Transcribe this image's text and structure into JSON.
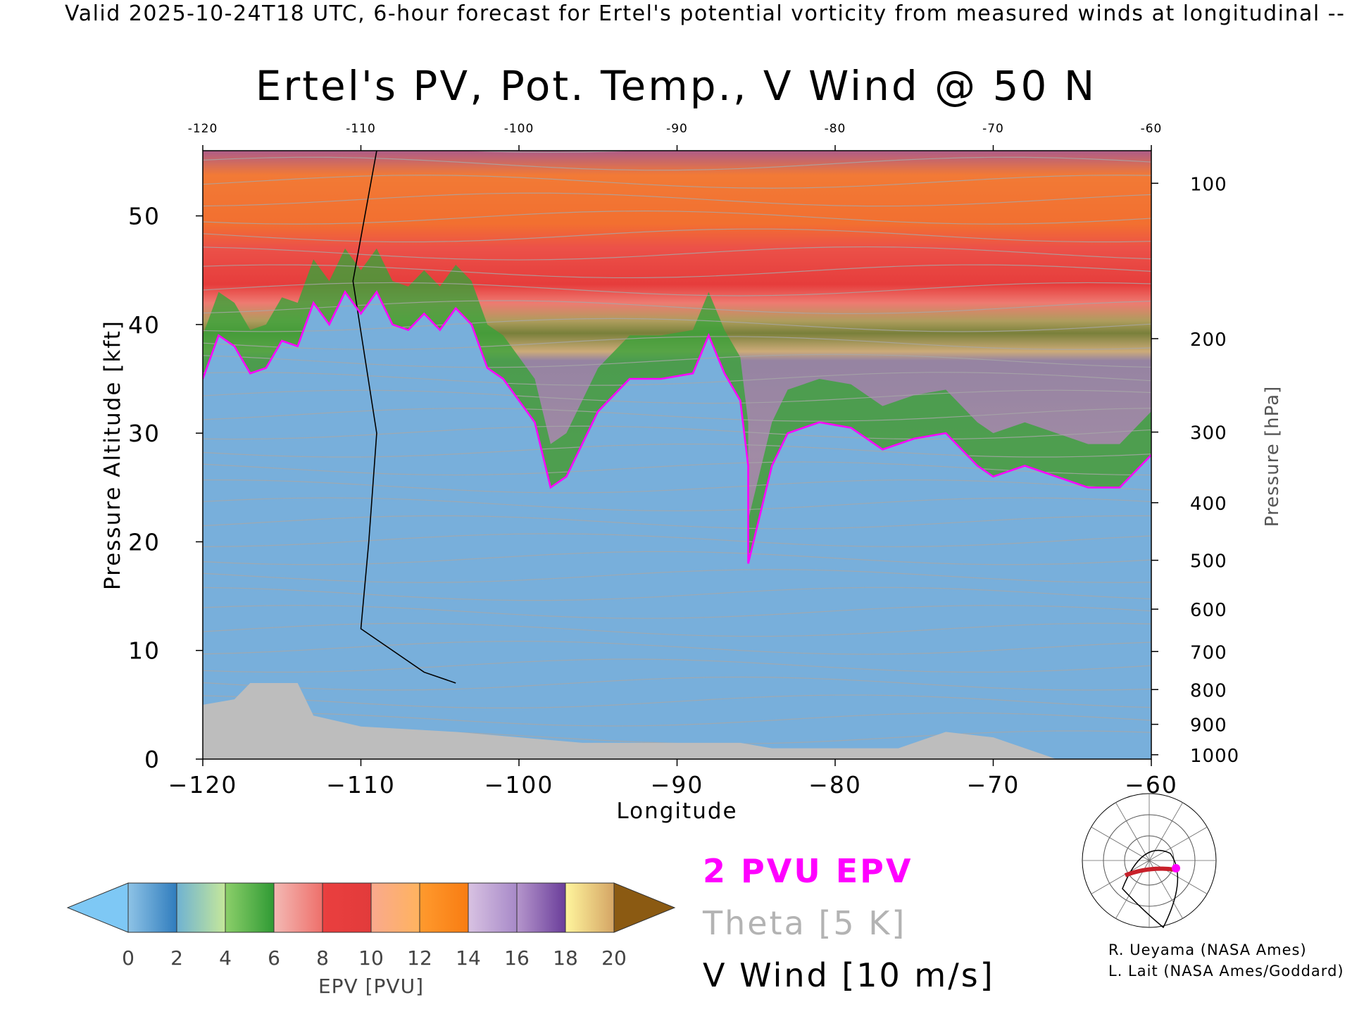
{
  "header": {
    "valid_line": "Valid 2025-10-24T18 UTC, 6-hour forecast for Ertel's potential vorticity from measured winds at longitudinal -- GEO"
  },
  "chart_data": {
    "type": "heatmap",
    "title": "Ertel's PV, Pot. Temp., V Wind @ 50 N",
    "xlabel": "Longitude",
    "ylabel": "Pressure Altitude [kft]",
    "y2label": "Pressure [hPa]",
    "xlim": [
      -120,
      -60
    ],
    "ylim": [
      0,
      56
    ],
    "x_ticks": [
      -120,
      -110,
      -100,
      -90,
      -80,
      -70,
      -60
    ],
    "x_tick_labels": [
      "−120",
      "−110",
      "−100",
      "−90",
      "−80",
      "−70",
      "−60"
    ],
    "top_tick_labels": [
      "-120",
      "-110",
      "-100",
      "-90",
      "-80",
      "-70",
      "-60"
    ],
    "y_ticks": [
      0,
      10,
      20,
      30,
      40,
      50
    ],
    "y_tick_labels": [
      "0",
      "10",
      "20",
      "30",
      "40",
      "50"
    ],
    "pressure_ticks": [
      {
        "hPa": 100,
        "kft": 53.0
      },
      {
        "hPa": 200,
        "kft": 38.7
      },
      {
        "hPa": 300,
        "kft": 30.1
      },
      {
        "hPa": 400,
        "kft": 23.6
      },
      {
        "hPa": 500,
        "kft": 18.3
      },
      {
        "hPa": 600,
        "kft": 13.8
      },
      {
        "hPa": 700,
        "kft": 9.9
      },
      {
        "hPa": 800,
        "kft": 6.4
      },
      {
        "hPa": 900,
        "kft": 3.2
      },
      {
        "hPa": 1000,
        "kft": 0.4
      }
    ],
    "pressure_tick_labels": [
      "100",
      "200",
      "300",
      "400",
      "500",
      "600",
      "700",
      "800",
      "900",
      "1000"
    ],
    "colorbar": {
      "label": "EPV [PVU]",
      "ticks": [
        "0",
        "2",
        "4",
        "6",
        "8",
        "10",
        "12",
        "14",
        "16",
        "18",
        "20"
      ],
      "under_color": "#7ec8f5",
      "over_color": "#8b5a12",
      "bins": [
        {
          "from": 0,
          "to": 2,
          "colors": [
            "#8ec3e6",
            "#2f7cbd"
          ]
        },
        {
          "from": 2,
          "to": 4,
          "colors": [
            "#6fb2d2",
            "#c6e89a"
          ]
        },
        {
          "from": 4,
          "to": 6,
          "colors": [
            "#8ccf6a",
            "#2f9a34"
          ]
        },
        {
          "from": 6,
          "to": 8,
          "colors": [
            "#f3b9b4",
            "#ee6f6a"
          ]
        },
        {
          "from": 8,
          "to": 10,
          "colors": [
            "#ea3f3f",
            "#e23b3b"
          ]
        },
        {
          "from": 10,
          "to": 12,
          "colors": [
            "#f9a98e",
            "#ffb35e"
          ]
        },
        {
          "from": 12,
          "to": 14,
          "colors": [
            "#ff9a2e",
            "#f87c12"
          ]
        },
        {
          "from": 14,
          "to": 16,
          "colors": [
            "#d8c2e2",
            "#a789c8"
          ]
        },
        {
          "from": 16,
          "to": 18,
          "colors": [
            "#b596cc",
            "#6a3d9a"
          ]
        },
        {
          "from": 18,
          "to": 20,
          "colors": [
            "#fff59d",
            "#d4a464"
          ]
        }
      ]
    },
    "tropopause_2pvu_kft": [
      {
        "lon": -120,
        "kft": 35
      },
      {
        "lon": -119,
        "kft": 39
      },
      {
        "lon": -118,
        "kft": 38
      },
      {
        "lon": -117,
        "kft": 35.5
      },
      {
        "lon": -116,
        "kft": 36
      },
      {
        "lon": -115,
        "kft": 38.5
      },
      {
        "lon": -114,
        "kft": 38
      },
      {
        "lon": -113,
        "kft": 42
      },
      {
        "lon": -112,
        "kft": 40
      },
      {
        "lon": -111,
        "kft": 43
      },
      {
        "lon": -110,
        "kft": 41
      },
      {
        "lon": -109,
        "kft": 43
      },
      {
        "lon": -108,
        "kft": 40
      },
      {
        "lon": -107,
        "kft": 39.5
      },
      {
        "lon": -106,
        "kft": 41
      },
      {
        "lon": -105,
        "kft": 39.5
      },
      {
        "lon": -104,
        "kft": 41.5
      },
      {
        "lon": -103,
        "kft": 40
      },
      {
        "lon": -102,
        "kft": 36
      },
      {
        "lon": -101,
        "kft": 35
      },
      {
        "lon": -100,
        "kft": 33
      },
      {
        "lon": -99,
        "kft": 31
      },
      {
        "lon": -98,
        "kft": 25
      },
      {
        "lon": -97,
        "kft": 26
      },
      {
        "lon": -96,
        "kft": 29
      },
      {
        "lon": -95,
        "kft": 32
      },
      {
        "lon": -93,
        "kft": 35
      },
      {
        "lon": -91,
        "kft": 35
      },
      {
        "lon": -89,
        "kft": 35.5
      },
      {
        "lon": -88,
        "kft": 39
      },
      {
        "lon": -87,
        "kft": 35.5
      },
      {
        "lon": -86,
        "kft": 33
      },
      {
        "lon": -85.5,
        "kft": 27
      },
      {
        "lon": -85.5,
        "kft": 18
      },
      {
        "lon": -84,
        "kft": 27
      },
      {
        "lon": -83,
        "kft": 30
      },
      {
        "lon": -81,
        "kft": 31
      },
      {
        "lon": -79,
        "kft": 30.5
      },
      {
        "lon": -77,
        "kft": 28.5
      },
      {
        "lon": -75,
        "kft": 29.5
      },
      {
        "lon": -73,
        "kft": 30
      },
      {
        "lon": -71,
        "kft": 27
      },
      {
        "lon": -70,
        "kft": 26
      },
      {
        "lon": -68,
        "kft": 27
      },
      {
        "lon": -66,
        "kft": 26
      },
      {
        "lon": -64,
        "kft": 25
      },
      {
        "lon": -62,
        "kft": 25
      },
      {
        "lon": -60,
        "kft": 28
      }
    ],
    "vwind_zero_lines": [
      [
        {
          "lon": -109,
          "kft": 56
        },
        {
          "lon": -110.5,
          "kft": 44
        },
        {
          "lon": -109,
          "kft": 30
        },
        {
          "lon": -109.5,
          "kft": 20
        },
        {
          "lon": -110,
          "kft": 12
        },
        {
          "lon": -106,
          "kft": 8
        },
        {
          "lon": -104,
          "kft": 7
        }
      ]
    ],
    "legend": {
      "epv_2pvu": "2 PVU EPV",
      "theta": "Theta [5 K]",
      "vwind": "V Wind [10 m/s]"
    },
    "colors": {
      "epv_2pvu": "#ff00ff",
      "theta": "#a8a8a8",
      "vwind": "#000000",
      "terrain": "#bdbdbd",
      "route": "#c8202a"
    },
    "credits": [
      "R. Ueyama (NASA Ames)",
      "L. Lait (NASA Ames/Goddard)"
    ]
  }
}
